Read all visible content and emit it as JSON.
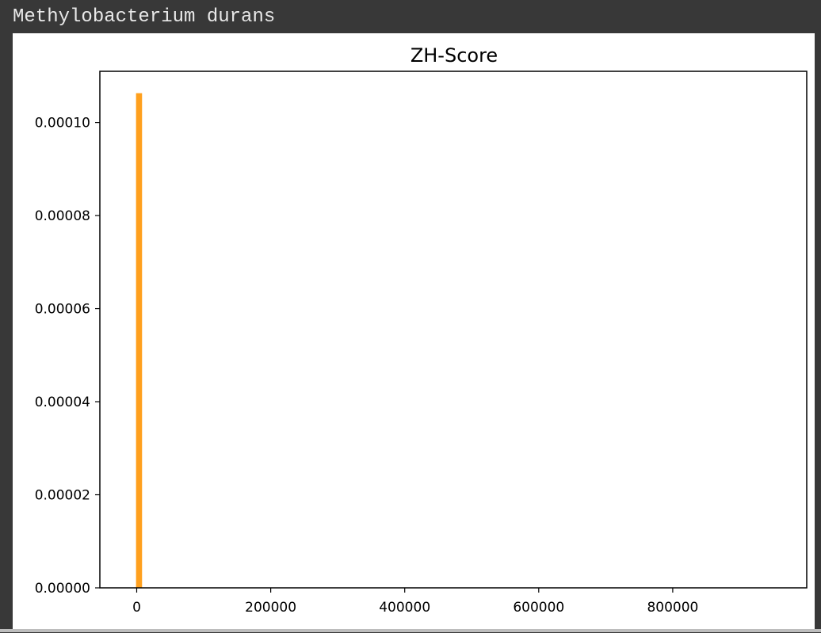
{
  "cell": {
    "title": "Methylobacterium durans"
  },
  "chart_data": {
    "type": "bar",
    "title": "ZH-Score",
    "xlabel": "",
    "ylabel": "",
    "xlim": [
      -55000,
      1000000
    ],
    "ylim": [
      0,
      0.000111
    ],
    "grid": false,
    "bar_color": "#ffa01e",
    "bars": [
      {
        "x0": -1000,
        "x1": 8000,
        "value": 0.0001063
      }
    ],
    "x_ticks": [
      {
        "value": 0,
        "label": "0"
      },
      {
        "value": 200000,
        "label": "200000"
      },
      {
        "value": 400000,
        "label": "400000"
      },
      {
        "value": 600000,
        "label": "600000"
      },
      {
        "value": 800000,
        "label": "800000"
      }
    ],
    "y_ticks": [
      {
        "value": 0,
        "label": "0.00000"
      },
      {
        "value": 2e-05,
        "label": "0.00002"
      },
      {
        "value": 4e-05,
        "label": "0.00004"
      },
      {
        "value": 6e-05,
        "label": "0.00006"
      },
      {
        "value": 8e-05,
        "label": "0.00008"
      },
      {
        "value": 0.0001,
        "label": "0.00010"
      }
    ]
  }
}
